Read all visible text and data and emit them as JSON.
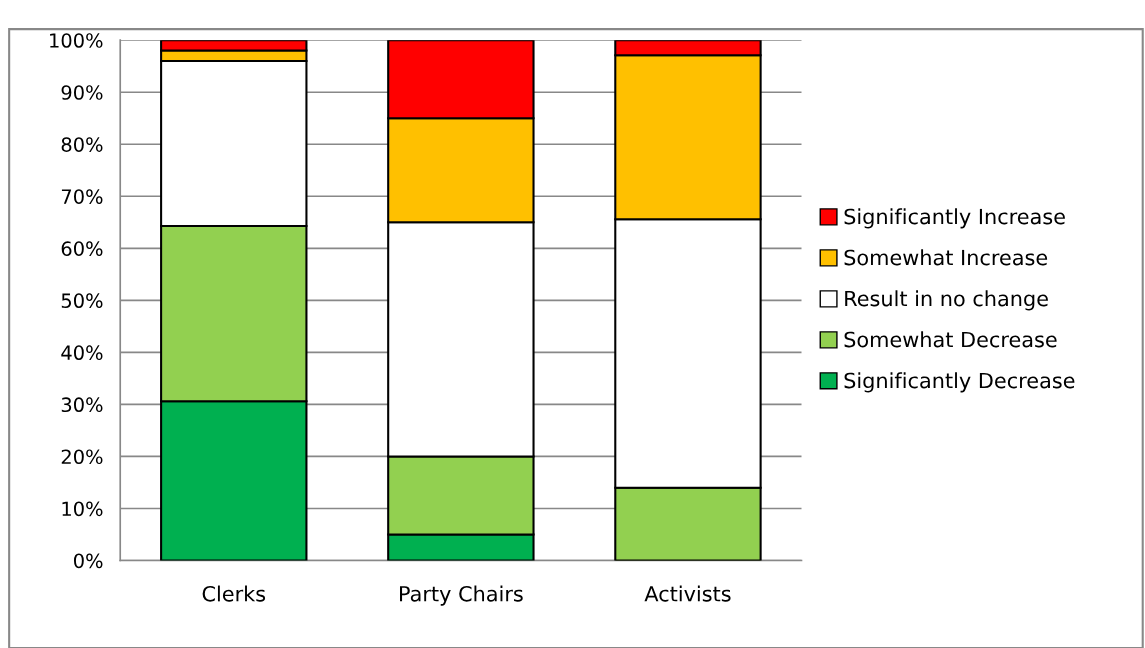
{
  "chart_data": {
    "type": "bar",
    "stacked": true,
    "categories": [
      "Clerks",
      "Party Chairs",
      "Activists"
    ],
    "series": [
      {
        "name": "Significantly Decrease",
        "color": "#00b050",
        "values": [
          30.6,
          5,
          0
        ]
      },
      {
        "name": "Somewhat Decrease",
        "color": "#92d050",
        "values": [
          33.7,
          15,
          14
        ]
      },
      {
        "name": "Result in no change",
        "color": "#ffffff",
        "values": [
          31.7,
          45,
          51.6
        ]
      },
      {
        "name": "Somewhat Increase",
        "color": "#ffc000",
        "values": [
          2,
          20,
          31.5
        ]
      },
      {
        "name": "Significantly Increase",
        "color": "#ff0000",
        "values": [
          2,
          15,
          2.9
        ]
      }
    ],
    "ylim": [
      0,
      100
    ],
    "yticks": [
      {
        "value": 0,
        "label": "0%"
      },
      {
        "value": 10,
        "label": "10%"
      },
      {
        "value": 20,
        "label": "20%"
      },
      {
        "value": 30,
        "label": "30%"
      },
      {
        "value": 40,
        "label": "40%"
      },
      {
        "value": 50,
        "label": "50%"
      },
      {
        "value": 60,
        "label": "60%"
      },
      {
        "value": 70,
        "label": "70%"
      },
      {
        "value": 80,
        "label": "80%"
      },
      {
        "value": 90,
        "label": "90%"
      },
      {
        "value": 100,
        "label": "100%"
      }
    ],
    "grid": "y",
    "legend": "right"
  }
}
